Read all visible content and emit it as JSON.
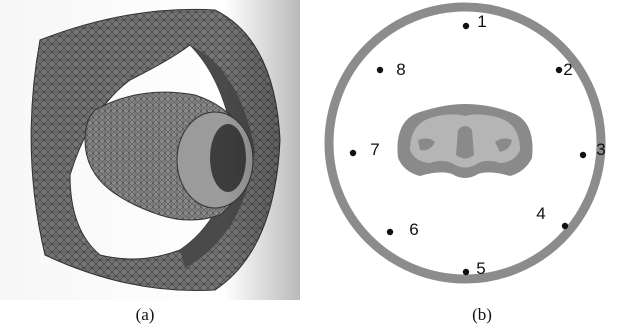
{
  "panels": {
    "a": {
      "caption": "(a)"
    },
    "b": {
      "caption": "(b)",
      "markers": [
        {
          "label": "1"
        },
        {
          "label": "2"
        },
        {
          "label": "3"
        },
        {
          "label": "4"
        },
        {
          "label": "5"
        },
        {
          "label": "6"
        },
        {
          "label": "7"
        },
        {
          "label": "8"
        }
      ]
    }
  },
  "colors": {
    "mesh_fill": "#6f6f6f",
    "mesh_line": "#3a3a3a",
    "ring": "#8c8c8c",
    "torso_outer": "#8a8a8a",
    "torso_inner": "#b5b5b5",
    "marker": "#111111"
  }
}
